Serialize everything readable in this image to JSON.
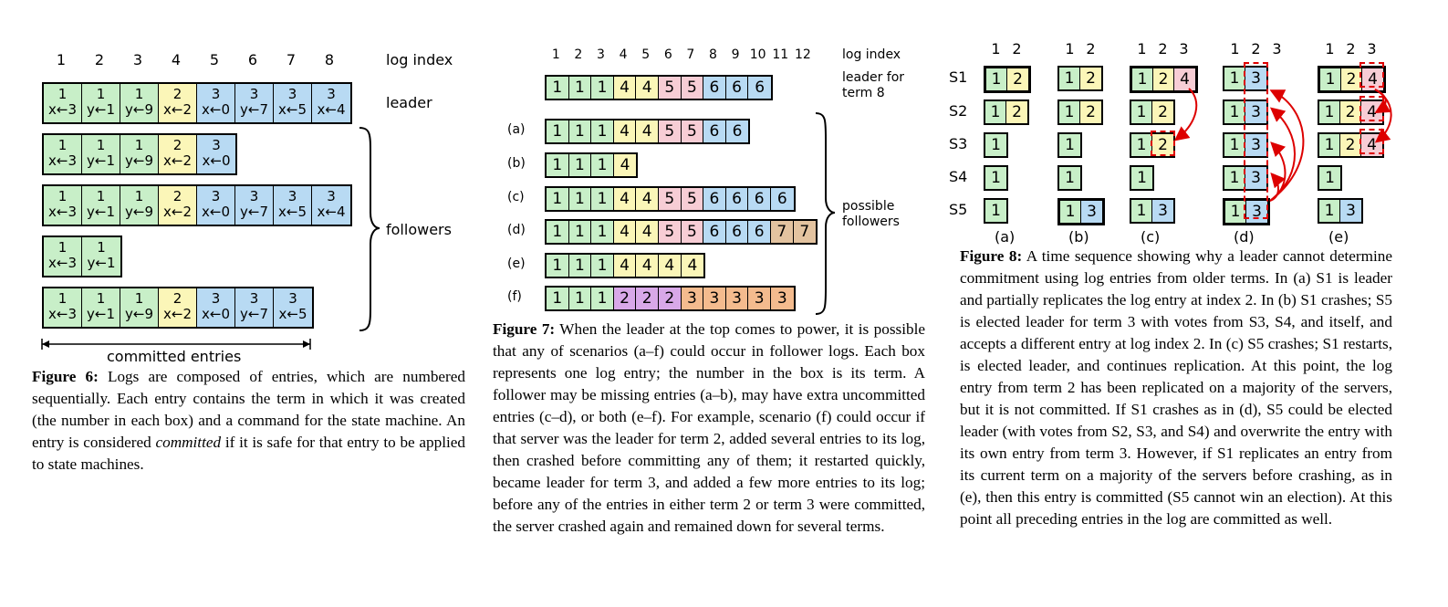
{
  "figure6": {
    "indices": [
      "1",
      "2",
      "3",
      "4",
      "5",
      "6",
      "7",
      "8"
    ],
    "log_index_label": "log index",
    "leader_label": "leader",
    "followers_label": "followers",
    "committed_label": "committed entries",
    "rows": [
      [
        {
          "t": "1",
          "c": "x←3"
        },
        {
          "t": "1",
          "c": "y←1"
        },
        {
          "t": "1",
          "c": "y←9"
        },
        {
          "t": "2",
          "c": "x←2"
        },
        {
          "t": "3",
          "c": "x←0"
        },
        {
          "t": "3",
          "c": "y←7"
        },
        {
          "t": "3",
          "c": "x←5"
        },
        {
          "t": "3",
          "c": "x←4"
        }
      ],
      [
        {
          "t": "1",
          "c": "x←3"
        },
        {
          "t": "1",
          "c": "y←1"
        },
        {
          "t": "1",
          "c": "y←9"
        },
        {
          "t": "2",
          "c": "x←2"
        },
        {
          "t": "3",
          "c": "x←0"
        }
      ],
      [
        {
          "t": "1",
          "c": "x←3"
        },
        {
          "t": "1",
          "c": "y←1"
        },
        {
          "t": "1",
          "c": "y←9"
        },
        {
          "t": "2",
          "c": "x←2"
        },
        {
          "t": "3",
          "c": "x←0"
        },
        {
          "t": "3",
          "c": "y←7"
        },
        {
          "t": "3",
          "c": "x←5"
        },
        {
          "t": "3",
          "c": "x←4"
        }
      ],
      [
        {
          "t": "1",
          "c": "x←3"
        },
        {
          "t": "1",
          "c": "y←1"
        }
      ],
      [
        {
          "t": "1",
          "c": "x←3"
        },
        {
          "t": "1",
          "c": "y←1"
        },
        {
          "t": "1",
          "c": "y←9"
        },
        {
          "t": "2",
          "c": "x←2"
        },
        {
          "t": "3",
          "c": "x←0"
        },
        {
          "t": "3",
          "c": "y←7"
        },
        {
          "t": "3",
          "c": "x←5"
        }
      ]
    ],
    "caption_title": "Figure 6:",
    "caption_pre": " Logs are composed of entries, which are numbered sequentially. Each entry contains the term in which it was created (the number in each box) and a command for the state machine. An entry is considered ",
    "caption_em": "committed",
    "caption_post": " if it is safe for that entry to be applied to state machines."
  },
  "figure7": {
    "indices": [
      "1",
      "2",
      "3",
      "4",
      "5",
      "6",
      "7",
      "8",
      "9",
      "10",
      "11",
      "12"
    ],
    "log_index_label": "log index",
    "leader_label_1": "leader for",
    "leader_label_2": "term 8",
    "possible_label_1": "possible",
    "possible_label_2": "followers",
    "leader_row": [
      "1",
      "1",
      "1",
      "4",
      "4",
      "5",
      "5",
      "6",
      "6",
      "6"
    ],
    "scenarios": [
      {
        "label": "(a)",
        "entries": [
          "1",
          "1",
          "1",
          "4",
          "4",
          "5",
          "5",
          "6",
          "6"
        ],
        "style": "std"
      },
      {
        "label": "(b)",
        "entries": [
          "1",
          "1",
          "1",
          "4"
        ],
        "style": "std"
      },
      {
        "label": "(c)",
        "entries": [
          "1",
          "1",
          "1",
          "4",
          "4",
          "5",
          "5",
          "6",
          "6",
          "6",
          "6"
        ],
        "style": "std"
      },
      {
        "label": "(d)",
        "entries": [
          "1",
          "1",
          "1",
          "4",
          "4",
          "5",
          "5",
          "6",
          "6",
          "6",
          "7",
          "7"
        ],
        "style": "std"
      },
      {
        "label": "(e)",
        "entries": [
          "1",
          "1",
          "1",
          "4",
          "4",
          "4",
          "4"
        ],
        "style": "std"
      },
      {
        "label": "(f)",
        "entries": [
          "1",
          "1",
          "1",
          "2",
          "2",
          "2",
          "3",
          "3",
          "3",
          "3",
          "3"
        ],
        "style": "f"
      }
    ],
    "caption_title": "Figure 7:",
    "caption_body": " When the leader at the top comes to power, it is possible that any of scenarios (a–f) could occur in follower logs. Each box represents one log entry; the number in the box is its term. A follower may be missing entries (a–b), may have extra uncommitted entries (c–d), or both (e–f). For example, scenario (f) could occur if that server was the leader for term 2, added several entries to its log, then crashed before committing any of them; it restarted quickly, became leader for term 3, and added a few more entries to its log; before any of the entries in either term 2 or term 3 were committed, the server crashed again and remained down for several terms."
  },
  "figure8": {
    "servers": [
      "S1",
      "S2",
      "S3",
      "S4",
      "S5"
    ],
    "panels": [
      {
        "label": "(a)",
        "indices": [
          "1",
          "2"
        ],
        "rows": [
          [
            "1",
            "2"
          ],
          [
            "1",
            "2"
          ],
          [
            "1"
          ],
          [
            "1"
          ],
          [
            "1"
          ]
        ],
        "leader": 0
      },
      {
        "label": "(b)",
        "indices": [
          "1",
          "2"
        ],
        "rows": [
          [
            "1",
            "2"
          ],
          [
            "1",
            "2"
          ],
          [
            "1"
          ],
          [
            "1"
          ],
          [
            "1",
            "3"
          ]
        ],
        "leader": 4
      },
      {
        "label": "(c)",
        "indices": [
          "1",
          "2",
          "3"
        ],
        "rows": [
          [
            "1",
            "2",
            "4"
          ],
          [
            "1",
            "2"
          ],
          [
            "1",
            "2"
          ],
          [
            "1"
          ],
          [
            "1",
            "3"
          ]
        ],
        "leader": 0
      },
      {
        "label": "(d)",
        "indices": [
          "1",
          "2",
          "3"
        ],
        "rows": [
          [
            "1",
            "3"
          ],
          [
            "1",
            "3"
          ],
          [
            "1",
            "3"
          ],
          [
            "1",
            "3"
          ],
          [
            "1",
            "3"
          ]
        ],
        "leader": 4
      },
      {
        "label": "(e)",
        "indices": [
          "1",
          "2",
          "3"
        ],
        "rows": [
          [
            "1",
            "2",
            "4"
          ],
          [
            "1",
            "2",
            "4"
          ],
          [
            "1",
            "2",
            "4"
          ],
          [
            "1"
          ],
          [
            "1",
            "3"
          ]
        ],
        "leader": 0
      }
    ],
    "caption_title": "Figure 8:",
    "caption_body": " A time sequence showing why a leader cannot determine commitment using log entries from older terms. In (a) S1 is leader and partially replicates the log entry at index 2. In (b) S1 crashes; S5 is elected leader for term 3 with votes from S3, S4, and itself, and accepts a different entry at log index 2. In (c) S5 crashes; S1 restarts, is elected leader, and continues replication. At this point, the log entry from term 2 has been replicated on a majority of the servers, but it is not committed. If S1 crashes as in (d), S5 could be elected leader (with votes from S2, S3, and S4) and overwrite the entry with its own entry from term 3. However, if S1 replicates an entry from its current term on a majority of the servers before crashing, as in (e), then this entry is committed (S5 cannot win an election). At this point all preceding entries in the log are committed as well."
  }
}
